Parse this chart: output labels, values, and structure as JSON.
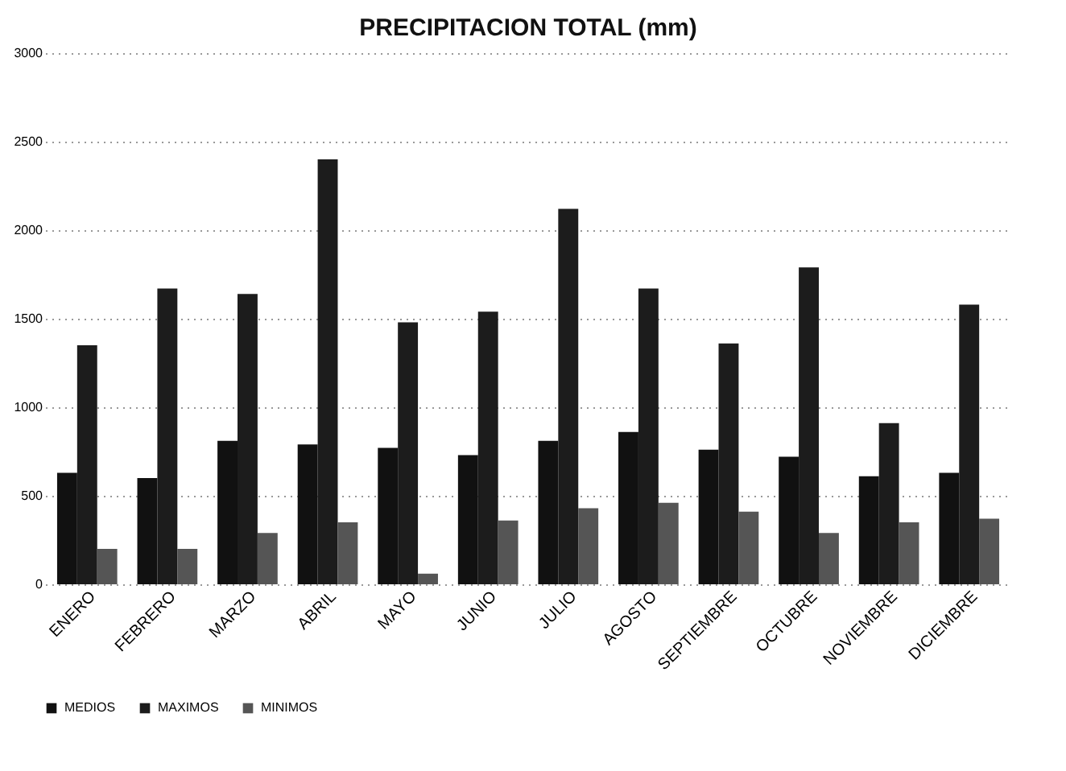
{
  "chart_data": {
    "type": "bar",
    "title": "PRECIPITACION TOTAL  (mm)",
    "categories": [
      "ENERO",
      "FEBRERO",
      "MARZO",
      "ABRIL",
      "MAYO",
      "JUNIO",
      "JULIO",
      "AGOSTO",
      "SEPTIEMBRE",
      "OCTUBRE",
      "NOVIEMBRE",
      "DICIEMBRE"
    ],
    "series": [
      {
        "name": "MEDIOS",
        "color": "#111111",
        "values": [
          630,
          600,
          810,
          790,
          770,
          730,
          810,
          860,
          760,
          720,
          610,
          630
        ]
      },
      {
        "name": "MAXIMOS",
        "color": "#1c1c1c",
        "values": [
          1350,
          1670,
          1640,
          2400,
          1480,
          1540,
          2120,
          1670,
          1360,
          1790,
          910,
          1580
        ]
      },
      {
        "name": "MINIMOS",
        "color": "#555555",
        "values": [
          200,
          200,
          290,
          350,
          60,
          360,
          430,
          460,
          410,
          290,
          350,
          370
        ]
      }
    ],
    "ylim": [
      0,
      3000
    ],
    "yticks": [
      0,
      500,
      1000,
      1500,
      2000,
      2500,
      3000
    ],
    "grid": "y",
    "legend": "bottom"
  }
}
